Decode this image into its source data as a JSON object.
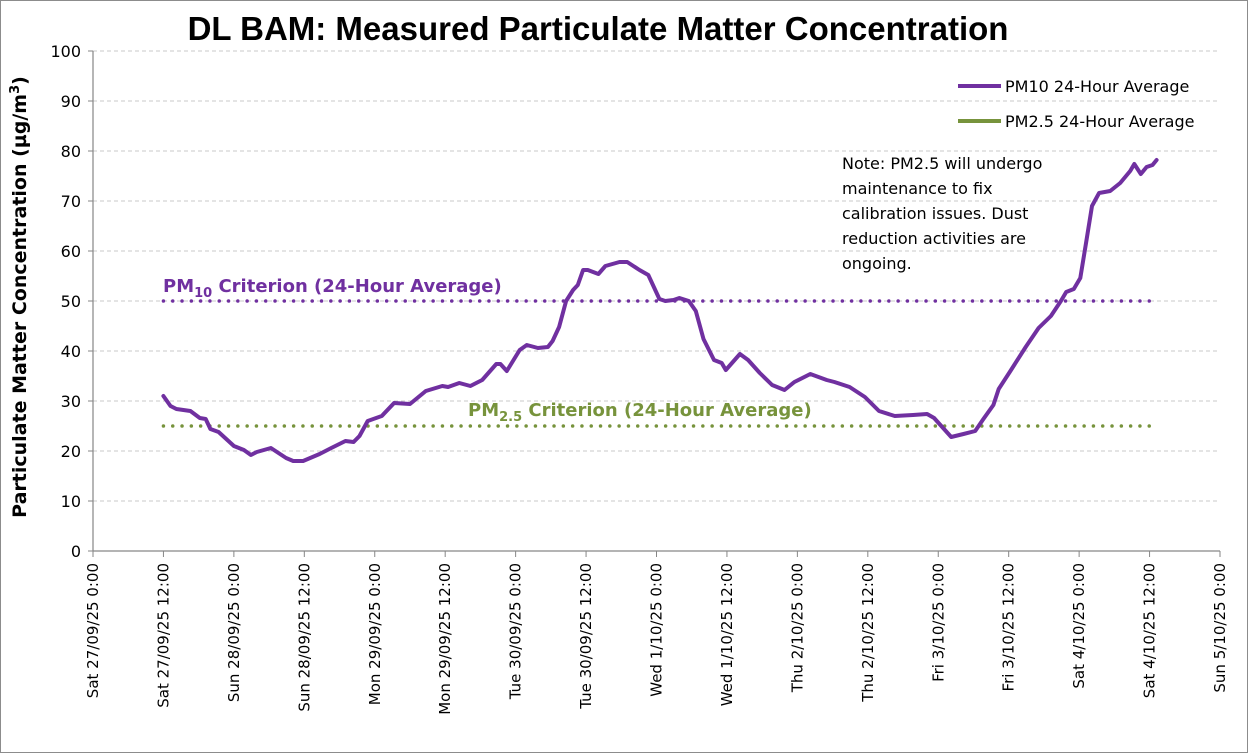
{
  "chart_data": {
    "type": "line",
    "title": "DL BAM: Measured Particulate Matter Concentration",
    "xlabel": "",
    "ylabel": "Particulate Matter Concentration (µg/m³)",
    "ylabel_parts": {
      "main": "Particulate Matter Concentration (µg/m",
      "sup": "3",
      "end": ")"
    },
    "ylim": [
      0,
      100
    ],
    "yticks": [
      0,
      10,
      20,
      30,
      40,
      50,
      60,
      70,
      80,
      90,
      100
    ],
    "grid": true,
    "x_unit": "hours since Sat 27/09/25 0:00",
    "xlim_hours": [
      0,
      192
    ],
    "xtick_step_hours": 12,
    "xtick_labels": [
      "Sat 27/09/25 0:00",
      "Sat 27/09/25 12:00",
      "Sun 28/09/25 0:00",
      "Sun 28/09/25 12:00",
      "Mon 29/09/25 0:00",
      "Mon 29/09/25 12:00",
      "Tue 30/09/25 0:00",
      "Tue 30/09/25 12:00",
      "Wed 1/10/25 0:00",
      "Wed 1/10/25 12:00",
      "Thu 2/10/25 0:00",
      "Thu 2/10/25 12:00",
      "Fri 3/10/25 0:00",
      "Fri 3/10/25 12:00",
      "Sat 4/10/25 0:00",
      "Sat 4/10/25 12:00",
      "Sun 5/10/25 0:00"
    ],
    "legend_position": "top-right",
    "series": [
      {
        "name": "PM10 24-Hour Average",
        "color": "#7030a0",
        "style": "solid",
        "points": [
          [
            12,
            31
          ],
          [
            13.2,
            29
          ],
          [
            14.2,
            28.4
          ],
          [
            16.6,
            28
          ],
          [
            18.2,
            26.6
          ],
          [
            19.2,
            26.4
          ],
          [
            20,
            24.4
          ],
          [
            21.4,
            23.8
          ],
          [
            24,
            21
          ],
          [
            25.7,
            20.2
          ],
          [
            26.9,
            19.2
          ],
          [
            27.9,
            19.8
          ],
          [
            30.3,
            20.6
          ],
          [
            32.9,
            18.6
          ],
          [
            34.1,
            18
          ],
          [
            35.8,
            18
          ],
          [
            38.6,
            19.4
          ],
          [
            40.6,
            20.6
          ],
          [
            43,
            22
          ],
          [
            44.4,
            21.8
          ],
          [
            45.4,
            23
          ],
          [
            46.8,
            26
          ],
          [
            49.2,
            27
          ],
          [
            51.3,
            29.6
          ],
          [
            54,
            29.4
          ],
          [
            56.7,
            32
          ],
          [
            59.5,
            33
          ],
          [
            60.5,
            32.8
          ],
          [
            62.4,
            33.6
          ],
          [
            64.3,
            33
          ],
          [
            66.3,
            34.2
          ],
          [
            68.7,
            37.4
          ],
          [
            69.4,
            37.4
          ],
          [
            70.5,
            36
          ],
          [
            72.7,
            40.2
          ],
          [
            73.9,
            41.2
          ],
          [
            75.8,
            40.6
          ],
          [
            77.5,
            40.8
          ],
          [
            78.3,
            42
          ],
          [
            79.4,
            44.8
          ],
          [
            80.6,
            50
          ],
          [
            81.8,
            52.2
          ],
          [
            82.6,
            53.2
          ],
          [
            83.5,
            56.2
          ],
          [
            84.3,
            56.2
          ],
          [
            86.1,
            55.4
          ],
          [
            87.3,
            57
          ],
          [
            89.7,
            57.8
          ],
          [
            91,
            57.8
          ],
          [
            93.1,
            56.2
          ],
          [
            94.6,
            55.2
          ],
          [
            96.5,
            50.4
          ],
          [
            97.5,
            50
          ],
          [
            98.9,
            50.2
          ],
          [
            99.9,
            50.6
          ],
          [
            101.5,
            50
          ],
          [
            102.7,
            48
          ],
          [
            104,
            42.4
          ],
          [
            105.8,
            38.2
          ],
          [
            107.1,
            37.6
          ],
          [
            107.8,
            36.2
          ],
          [
            110.2,
            39.4
          ],
          [
            111.6,
            38.2
          ],
          [
            113.6,
            35.6
          ],
          [
            115.7,
            33.2
          ],
          [
            117.8,
            32.2
          ],
          [
            119.5,
            33.8
          ],
          [
            122.2,
            35.4
          ],
          [
            125,
            34.2
          ],
          [
            126.3,
            33.8
          ],
          [
            128.9,
            32.8
          ],
          [
            131.5,
            30.8
          ],
          [
            133.9,
            28
          ],
          [
            136.6,
            27
          ],
          [
            139.7,
            27.2
          ],
          [
            142.1,
            27.4
          ],
          [
            143.3,
            26.6
          ],
          [
            146.2,
            22.8
          ],
          [
            148.3,
            23.4
          ],
          [
            150.3,
            24
          ],
          [
            151.7,
            26.4
          ],
          [
            153.4,
            29.2
          ],
          [
            154.3,
            32.4
          ],
          [
            156.3,
            36
          ],
          [
            158.9,
            40.8
          ],
          [
            161.1,
            44.6
          ],
          [
            163.2,
            47
          ],
          [
            164.9,
            50
          ],
          [
            165.8,
            51.8
          ],
          [
            167.1,
            52.4
          ],
          [
            168.2,
            54.6
          ],
          [
            169.2,
            61.8
          ],
          [
            170.2,
            69
          ],
          [
            171.4,
            71.6
          ],
          [
            173.3,
            72
          ],
          [
            175,
            73.6
          ],
          [
            176.7,
            76
          ],
          [
            177.4,
            77.4
          ],
          [
            178.5,
            75.4
          ],
          [
            179.5,
            76.8
          ],
          [
            180.5,
            77.2
          ],
          [
            181.2,
            78.2
          ]
        ]
      },
      {
        "name": "PM2.5 24-Hour Average",
        "color": "#77933c",
        "style": "solid",
        "points": []
      }
    ],
    "reference_lines": [
      {
        "name": "PM10 Criterion (24-Hour Average)",
        "label_main": "PM",
        "label_sub": "10",
        "label_rest": " Criterion (24-Hour Average)",
        "value": 50,
        "from_hours": 12,
        "to_hours": 180,
        "color": "#7030a0",
        "style": "dotted"
      },
      {
        "name": "PM2.5 Criterion (24-Hour Average)",
        "label_main": "PM",
        "label_sub": "2.5",
        "label_rest": " Criterion (24-Hour Average)",
        "value": 25,
        "from_hours": 12,
        "to_hours": 180,
        "color": "#77933c",
        "style": "dotted"
      }
    ],
    "annotations": [
      {
        "name": "note",
        "lines": [
          "Note: PM2.5 will undergo",
          "maintenance to fix",
          "calibration issues. Dust",
          "reduction activities are",
          "ongoing."
        ]
      }
    ]
  },
  "colors": {
    "axis": "#868686",
    "grid": "#c8c8c8"
  }
}
